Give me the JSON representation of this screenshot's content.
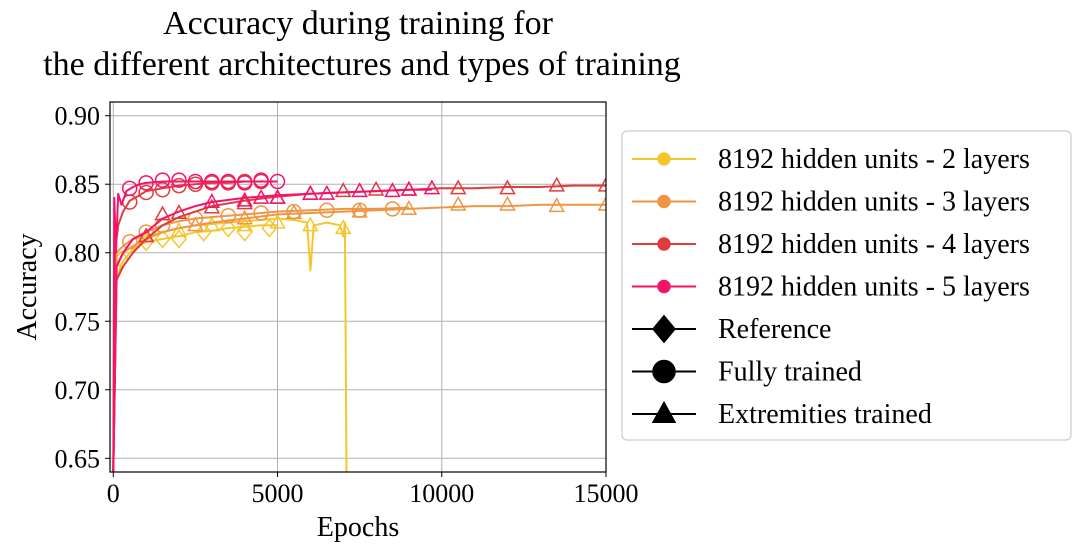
{
  "chart_data": {
    "type": "line",
    "title": [
      "Accuracy during training for",
      "the different architectures and types of training"
    ],
    "xlabel": "Epochs",
    "ylabel": "Accuracy",
    "xlim": [
      -100,
      15000
    ],
    "ylim": [
      0.64,
      0.91
    ],
    "xticks": [
      0,
      5000,
      10000,
      15000
    ],
    "xtick_labels": [
      "0",
      "5000",
      "10000",
      "15000"
    ],
    "yticks": [
      0.65,
      0.7,
      0.75,
      0.8,
      0.85,
      0.9
    ],
    "ytick_labels": [
      "0.65",
      "0.70",
      "0.75",
      "0.80",
      "0.85",
      "0.90"
    ],
    "grid": true,
    "legend_position": "right-outside",
    "series": [
      {
        "name": "8192 hidden units - 2 layers",
        "color": "#f5c62b",
        "lines": [
          {
            "marker": "diamond",
            "x": [
              0,
              100,
              250,
              500,
              750,
              1000,
              1500,
              2000,
              2500,
              3000,
              3500,
              4000,
              4500,
              5000
            ],
            "y": [
              0.64,
              0.78,
              0.792,
              0.8,
              0.805,
              0.808,
              0.81,
              0.812,
              0.815,
              0.816,
              0.818,
              0.819,
              0.82,
              0.82
            ],
            "marker_x": [
              250,
              1000,
              1500,
              2000,
              2750,
              3500,
              4000,
              4750
            ],
            "marker_y": [
              0.795,
              0.808,
              0.81,
              0.81,
              0.815,
              0.818,
              0.815,
              0.818
            ]
          },
          {
            "marker": "triangle",
            "x": [
              0,
              100,
              300,
              600,
              1000,
              1500,
              2000,
              2500,
              3000,
              3500,
              4000,
              4500,
              5000,
              5500,
              5900,
              6000,
              6100,
              6500,
              6900,
              7000,
              7050,
              7100
            ],
            "y": [
              0.64,
              0.79,
              0.8,
              0.81,
              0.812,
              0.815,
              0.818,
              0.82,
              0.821,
              0.822,
              0.823,
              0.824,
              0.825,
              0.824,
              0.822,
              0.787,
              0.82,
              0.822,
              0.82,
              0.812,
              0.822,
              0.64
            ],
            "marker_x": [
              1000,
              2000,
              3000,
              4000,
              5000,
              6000,
              7000
            ],
            "marker_y": [
              0.812,
              0.816,
              0.82,
              0.82,
              0.822,
              0.82,
              0.818
            ]
          }
        ]
      },
      {
        "name": "8192 hidden units - 3 layers",
        "color": "#ee9644",
        "lines": [
          {
            "marker": "circle",
            "x": [
              0,
              100,
              300,
              600,
              1000,
              1500,
              2000,
              2500,
              3000,
              3500,
              4000,
              4500,
              5000,
              6000,
              7000,
              8000,
              9000
            ],
            "y": [
              0.64,
              0.8,
              0.805,
              0.81,
              0.815,
              0.82,
              0.823,
              0.825,
              0.826,
              0.827,
              0.828,
              0.829,
              0.83,
              0.831,
              0.832,
              0.832,
              0.833
            ],
            "marker_x": [
              500,
              1000,
              1500,
              2500,
              3500,
              4500,
              5500,
              6500,
              7500,
              8500
            ],
            "marker_y": [
              0.808,
              0.815,
              0.82,
              0.825,
              0.827,
              0.829,
              0.83,
              0.831,
              0.831,
              0.832
            ]
          },
          {
            "marker": "triangle",
            "x": [
              0,
              100,
              300,
              600,
              1000,
              1500,
              2000,
              3000,
              4000,
              5000,
              6000,
              7000,
              8000,
              9000,
              10000,
              11000,
              12000,
              13000,
              14000,
              15000
            ],
            "y": [
              0.64,
              0.79,
              0.8,
              0.805,
              0.81,
              0.815,
              0.818,
              0.822,
              0.825,
              0.828,
              0.829,
              0.83,
              0.831,
              0.832,
              0.833,
              0.834,
              0.834,
              0.835,
              0.835,
              0.835
            ],
            "marker_x": [
              1000,
              2500,
              4000,
              5500,
              7500,
              9000,
              10500,
              12000,
              13500,
              15000
            ],
            "marker_y": [
              0.812,
              0.82,
              0.825,
              0.829,
              0.83,
              0.832,
              0.835,
              0.835,
              0.834,
              0.835
            ]
          }
        ]
      },
      {
        "name": "8192 hidden units - 4 layers",
        "color": "#e03c3c",
        "lines": [
          {
            "marker": "circle",
            "x": [
              0,
              50,
              150,
              300,
              500,
              800,
              1000,
              1500,
              2000,
              2500,
              3000,
              3500,
              4000,
              4500,
              5000
            ],
            "y": [
              0.64,
              0.8,
              0.82,
              0.83,
              0.838,
              0.842,
              0.845,
              0.847,
              0.849,
              0.85,
              0.851,
              0.851,
              0.852,
              0.852,
              0.852
            ],
            "marker_x": [
              500,
              1000,
              1500,
              2000,
              2500,
              3000,
              3500,
              4000,
              4500
            ],
            "marker_y": [
              0.837,
              0.844,
              0.846,
              0.849,
              0.85,
              0.851,
              0.851,
              0.852,
              0.852
            ]
          },
          {
            "marker": "triangle",
            "x": [
              0,
              100,
              300,
              600,
              1000,
              1500,
              2000,
              2500,
              3000,
              4000,
              5000,
              6000,
              7000,
              8000,
              9000,
              10000,
              11000,
              12000,
              13000,
              14000,
              15000
            ],
            "y": [
              0.64,
              0.78,
              0.79,
              0.8,
              0.81,
              0.82,
              0.826,
              0.83,
              0.834,
              0.838,
              0.841,
              0.843,
              0.844,
              0.845,
              0.846,
              0.847,
              0.847,
              0.848,
              0.848,
              0.849,
              0.849
            ],
            "marker_x": [
              1000,
              1500,
              2000,
              3000,
              4000,
              5000,
              6000,
              7000,
              8000,
              9000,
              10500,
              12000,
              13500,
              15000
            ],
            "marker_y": [
              0.812,
              0.828,
              0.829,
              0.833,
              0.836,
              0.84,
              0.843,
              0.845,
              0.846,
              0.846,
              0.847,
              0.847,
              0.849,
              0.849
            ]
          }
        ]
      },
      {
        "name": "8192 hidden units - 5 layers",
        "color": "#f5136a",
        "lines": [
          {
            "marker": "circle",
            "x": [
              0,
              30,
              80,
              150,
              250,
              400,
              600,
              800,
              1000,
              1500,
              2000,
              2500,
              3000,
              3500,
              4000,
              4500,
              5000
            ],
            "y": [
              0.64,
              0.84,
              0.8,
              0.843,
              0.835,
              0.845,
              0.848,
              0.85,
              0.851,
              0.852,
              0.852,
              0.852,
              0.852,
              0.852,
              0.852,
              0.852,
              0.852
            ],
            "marker_x": [
              500,
              1000,
              1500,
              2000,
              2500,
              3000,
              3500,
              4000,
              4500,
              5000
            ],
            "marker_y": [
              0.847,
              0.851,
              0.853,
              0.853,
              0.852,
              0.852,
              0.852,
              0.851,
              0.853,
              0.852
            ]
          },
          {
            "marker": "triangle",
            "x": [
              0,
              100,
              300,
              600,
              1000,
              1500,
              2000,
              2500,
              3000,
              4000,
              5000,
              6000,
              7000,
              8000,
              9000,
              9700
            ],
            "y": [
              0.64,
              0.79,
              0.8,
              0.81,
              0.815,
              0.825,
              0.83,
              0.834,
              0.837,
              0.84,
              0.842,
              0.843,
              0.844,
              0.845,
              0.846,
              0.846
            ],
            "marker_x": [
              3000,
              4000,
              4500,
              5000,
              6000,
              6500,
              7500,
              8500,
              9000,
              9700
            ],
            "marker_y": [
              0.837,
              0.838,
              0.84,
              0.84,
              0.843,
              0.843,
              0.845,
              0.845,
              0.846,
              0.847
            ]
          }
        ]
      }
    ],
    "marker_legend": [
      {
        "label": "Reference",
        "marker": "diamond"
      },
      {
        "label": "Fully trained",
        "marker": "circle"
      },
      {
        "label": "Extremities trained",
        "marker": "triangle"
      }
    ]
  }
}
